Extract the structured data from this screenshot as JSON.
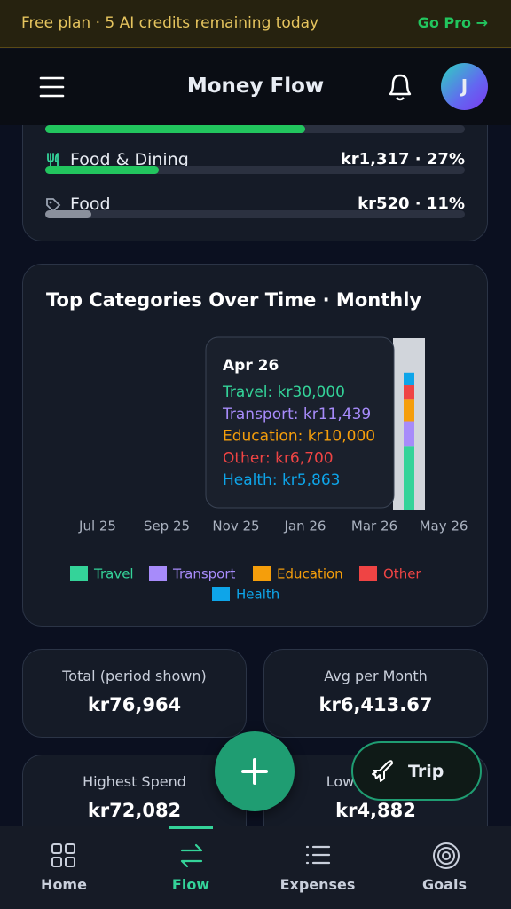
{
  "banner": {
    "text": "Free plan · 5 AI credits remaining today",
    "action": "Go Pro →"
  },
  "header": {
    "title": "Money Flow",
    "avatar": "J"
  },
  "category_list": {
    "items": [
      {
        "percent": 62
      },
      {
        "name": "Food & Dining",
        "amount": "kr1,317 · 27%",
        "percent": 27
      },
      {
        "name": "Food",
        "amount": "kr520 · 11%",
        "percent": 11
      }
    ]
  },
  "chart_data": {
    "type": "bar",
    "stacked": true,
    "title": "Top Categories Over Time · Monthly",
    "categories": [
      "Jul 25",
      null,
      "Sep 25",
      null,
      "Nov 25",
      null,
      "Jan 26",
      null,
      "Mar 26",
      null,
      "May 26"
    ],
    "series": [
      {
        "name": "Travel",
        "color": "#34d399",
        "values": [
          null,
          null,
          null,
          null,
          null,
          null,
          null,
          null,
          null,
          30000,
          null
        ]
      },
      {
        "name": "Transport",
        "color": "#a78bfa",
        "values": [
          null,
          null,
          null,
          null,
          null,
          null,
          null,
          null,
          null,
          11439,
          null
        ]
      },
      {
        "name": "Education",
        "color": "#f59e0b",
        "values": [
          null,
          null,
          null,
          null,
          null,
          null,
          null,
          null,
          null,
          10000,
          null
        ]
      },
      {
        "name": "Other",
        "color": "#ef4444",
        "values": [
          null,
          null,
          null,
          null,
          null,
          null,
          null,
          null,
          null,
          6700,
          null
        ]
      },
      {
        "name": "Health",
        "color": "#0ea5e9",
        "values": [
          null,
          null,
          null,
          null,
          null,
          null,
          null,
          null,
          null,
          5863,
          null
        ]
      }
    ],
    "ylim": [
      0,
      80000
    ],
    "legend": "bottom",
    "tooltip": {
      "title": "Apr 26",
      "lines": [
        "Travel: kr30,000",
        "Transport: kr11,439",
        "Education: kr10,000",
        "Other: kr6,700",
        "Health: kr5,863"
      ]
    }
  },
  "stats": [
    {
      "label": "Total (period shown)",
      "value": "kr76,964"
    },
    {
      "label": "Avg per Month",
      "value": "kr6,413.67"
    },
    {
      "label": "Highest Spend",
      "value": "kr72,082"
    },
    {
      "label": "Lowest Spend",
      "value": "kr4,882"
    }
  ],
  "trip_button": "Trip",
  "nav": [
    {
      "label": "Home"
    },
    {
      "label": "Flow"
    },
    {
      "label": "Expenses"
    },
    {
      "label": "Goals"
    }
  ]
}
